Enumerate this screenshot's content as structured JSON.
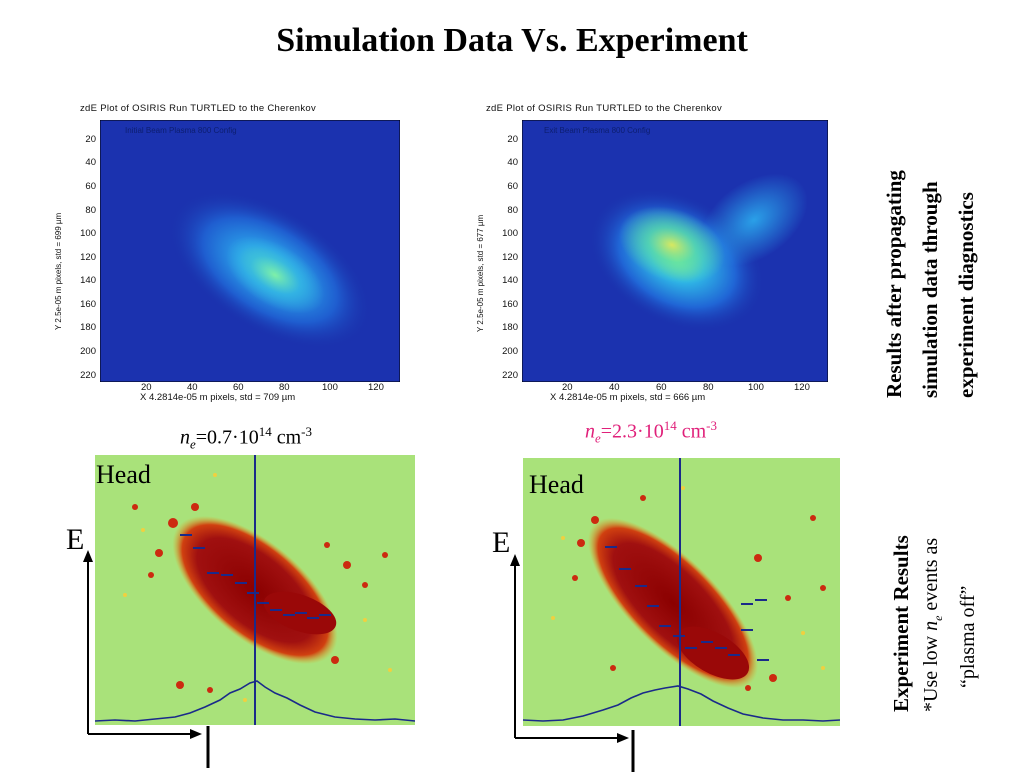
{
  "title": "Simulation Data Vs. Experiment",
  "sim_plot_left": {
    "title": "zdE Plot of OSIRIS Run TURTLED to the Cherenkov",
    "subtitle": "Initial Beam Plasma 800 Config",
    "xlabel": "X 4.2814e-05 m pixels, std = 709 µm",
    "ylabel": "Y 2.5e-05 m pixels, std = 699 µm",
    "yticks": [
      "20",
      "40",
      "60",
      "80",
      "100",
      "120",
      "140",
      "160",
      "180",
      "200",
      "220"
    ],
    "xticks": [
      "20",
      "40",
      "60",
      "80",
      "100",
      "120"
    ]
  },
  "sim_plot_right": {
    "title": "zdE Plot of OSIRIS Run TURTLED to the Cherenkov",
    "subtitle": "Exit Beam Plasma 800 Config",
    "xlabel": "X 4.2814e-05 m pixels, std = 666 µm",
    "ylabel": "Y 2.5e-05 m pixels, std = 677 µm",
    "yticks": [
      "20",
      "40",
      "60",
      "80",
      "100",
      "120",
      "140",
      "160",
      "180",
      "200",
      "220"
    ],
    "xticks": [
      "20",
      "40",
      "60",
      "80",
      "100",
      "120"
    ]
  },
  "density_left": {
    "symbol": "n",
    "subscript": "e",
    "prefix": "=0.7·10",
    "exponent": "14",
    "unit": " cm",
    "unit_exp": "-3"
  },
  "density_right": {
    "symbol": "n",
    "subscript": "e",
    "prefix": "=2.3·10",
    "exponent": "14",
    "unit": " cm",
    "unit_exp": "-3",
    "color": "#e0207a"
  },
  "exp_left": {
    "head_label": "Head",
    "axis_label": "E"
  },
  "exp_right": {
    "head_label": "Head",
    "axis_label": "E"
  },
  "side_top": {
    "line1": "Results after propagating",
    "line2": "simulation data through",
    "line3": "experiment diagnostics"
  },
  "side_bottom": {
    "heading": "Experiment Results",
    "note_prefix": "*Use low ",
    "note_symbol": "n",
    "note_subscript": "e",
    "note_suffix": " events as",
    "note_line2": "“plasma off”"
  },
  "colors": {
    "sim_background": "#1a2ea8",
    "exp_background": "#a9e27a",
    "beam_core": "#8b0000",
    "beam_edge": "#e8a020",
    "lineout": "#1a2a8a",
    "accent": "#e0207a"
  }
}
